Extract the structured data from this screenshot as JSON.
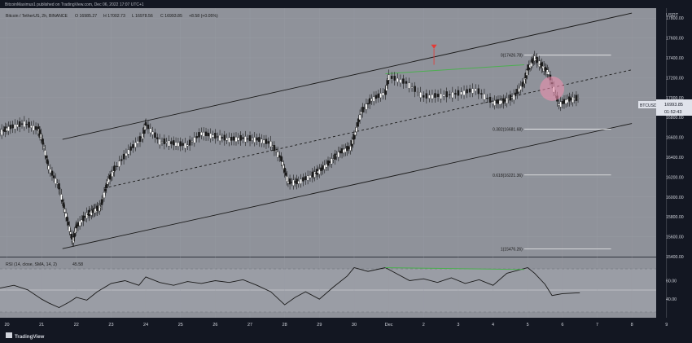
{
  "header": {
    "publisher": "BitcoinMaximus1 published on TradingView.com, Dec 06, 2022 17:07 UTC+1",
    "currency": "USDT"
  },
  "legend": {
    "symbol": "Bitcoin / TetherUS, 2h, BINANCE",
    "open": "O 16985.27",
    "high": "H 17002.73",
    "low": "L 16978.56",
    "close": "C 16993.85",
    "change": "+8.58 (+0.05%)"
  },
  "price_tag": {
    "symbol": "BTCUSDT",
    "price": "16993.85",
    "countdown": "01:52:43"
  },
  "rsi_legend": {
    "label": "RSI (14, close, SMA, 14, 2)",
    "value": "45.58"
  },
  "fib_levels": [
    {
      "label": "0(17426.78)",
      "price": 17426.78
    },
    {
      "label": "0.382(16681.68)",
      "price": 16681.68
    },
    {
      "label": "0.618(16221.36)",
      "price": 16221.36
    },
    {
      "label": "1(15476.26)",
      "price": 15476.26
    }
  ],
  "footer": {
    "brand": "TradingView"
  },
  "colors": {
    "background": "#131722",
    "pane": "#8f929a",
    "candle": "#ffffff",
    "wick": "#1a1a1a",
    "channel": "#1a1a1a",
    "green_divergence": "#4caf50",
    "red_marker": "#e53935",
    "circle": "#f48fb1"
  },
  "chart_data": [
    {
      "type": "line",
      "title": "Bitcoin / TetherUS, 2h, BINANCE",
      "ylabel": "USDT",
      "x_tick_labels": [
        "20",
        "21",
        "22",
        "23",
        "24",
        "25",
        "26",
        "27",
        "28",
        "29",
        "30",
        "Dec",
        "2",
        "3",
        "4",
        "5",
        "6",
        "7",
        "8",
        "9"
      ],
      "y_tick_labels": [
        "17800.00",
        "17600.00",
        "17400.00",
        "17200.00",
        "17000.00",
        "16800.00",
        "16600.00",
        "16400.00",
        "16200.00",
        "16000.00",
        "15800.00",
        "15600.00",
        "15400.00"
      ],
      "ylim": [
        15400,
        17900
      ],
      "price_path_x": [
        19.8,
        20.1,
        20.5,
        20.9,
        21.0,
        21.2,
        21.5,
        21.7,
        21.9,
        22.0,
        22.3,
        22.5,
        22.7,
        22.9,
        23.1,
        23.5,
        23.9,
        24.0,
        24.4,
        24.8,
        25.2,
        25.6,
        26.0,
        26.4,
        26.8,
        27.2,
        27.6,
        27.9,
        28.1,
        28.4,
        28.8,
        29.0,
        29.3,
        29.6,
        29.9,
        30.0,
        30.2,
        30.5,
        30.9,
        31.0,
        31.5,
        32.0,
        32.5,
        33.0,
        33.5,
        34.0,
        34.3,
        34.6,
        34.9,
        35.0,
        35.2,
        35.4,
        35.6,
        35.9,
        36.2,
        36.5
      ],
      "price_path_y": [
        16650,
        16700,
        16740,
        16680,
        16600,
        16300,
        16100,
        15820,
        15550,
        15700,
        15820,
        15860,
        15900,
        16150,
        16280,
        16460,
        16600,
        16730,
        16560,
        16540,
        16520,
        16640,
        16610,
        16580,
        16590,
        16580,
        16540,
        16380,
        16150,
        16150,
        16220,
        16260,
        16350,
        16450,
        16500,
        16600,
        16850,
        16980,
        17050,
        17210,
        17150,
        17010,
        17020,
        17040,
        17080,
        16950,
        16960,
        17010,
        17150,
        17280,
        17400,
        17320,
        17250,
        16930,
        16980,
        16994
      ],
      "channel_top": {
        "x": [
          21.6,
          38.0
        ],
        "y": [
          16580,
          17850
        ]
      },
      "channel_mid": {
        "x": [
          22.8,
          38.0
        ],
        "y": [
          16090,
          17280
        ]
      },
      "channel_bottom": {
        "x": [
          21.6,
          38.0
        ],
        "y": [
          15480,
          16740
        ]
      },
      "green_divergence_price": {
        "x": [
          30.9,
          34.9
        ],
        "y": [
          17240,
          17330
        ]
      },
      "circle_center": {
        "x": 35.7,
        "y": 17090
      }
    },
    {
      "type": "line",
      "title": "RSI (14, close, SMA, 14, 2)",
      "ylim": [
        20,
        85
      ],
      "y_tick_labels": [
        "60.00",
        "40.00"
      ],
      "rsi_x": [
        19.8,
        20.2,
        20.6,
        21.0,
        21.2,
        21.5,
        21.8,
        22.0,
        22.3,
        22.6,
        23.0,
        23.4,
        23.8,
        24.0,
        24.4,
        24.8,
        25.2,
        25.6,
        26.0,
        26.4,
        26.8,
        27.2,
        27.6,
        28.0,
        28.3,
        28.6,
        29.0,
        29.4,
        29.8,
        30.0,
        30.4,
        30.9,
        31.2,
        31.6,
        32.0,
        32.4,
        32.8,
        33.2,
        33.6,
        34.0,
        34.4,
        34.8,
        35.0,
        35.2,
        35.5,
        35.7,
        36.0,
        36.5
      ],
      "rsi_values": [
        52,
        55,
        50,
        40,
        36,
        31,
        37,
        42,
        39,
        48,
        57,
        60,
        55,
        64,
        58,
        55,
        59,
        57,
        60,
        58,
        61,
        55,
        48,
        34,
        42,
        48,
        40,
        53,
        65,
        74,
        70,
        74,
        68,
        60,
        62,
        58,
        63,
        57,
        61,
        55,
        68,
        72,
        74,
        68,
        56,
        44,
        46,
        47
      ],
      "green_divergence_rsi": {
        "x": [
          30.9,
          34.9
        ],
        "y": [
          74,
          72
        ]
      }
    }
  ]
}
